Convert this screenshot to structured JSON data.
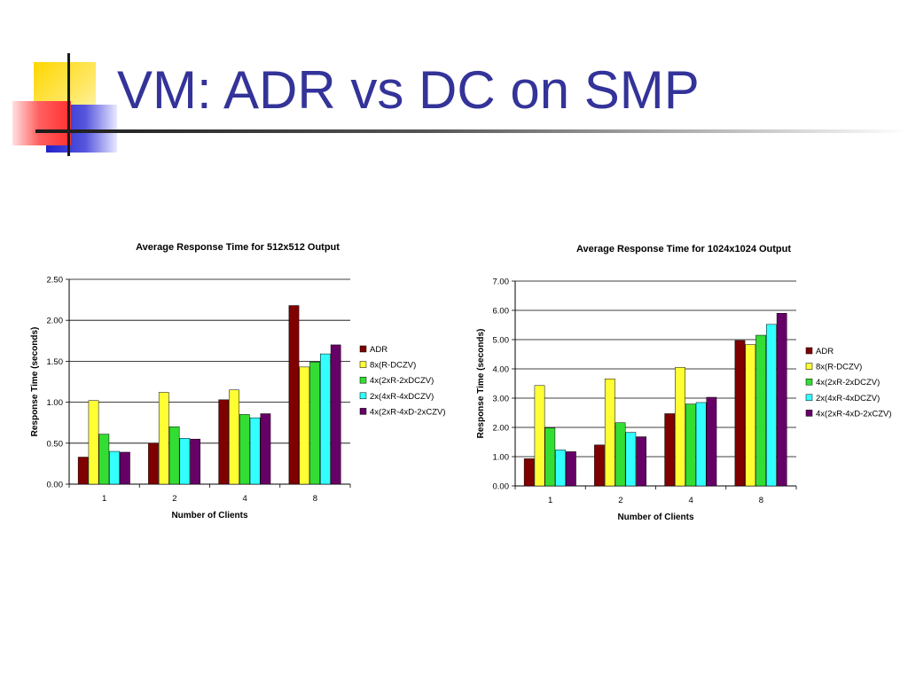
{
  "slide": {
    "title": "VM: ADR vs DC on SMP",
    "accent_colors": {
      "title": "#333399",
      "yellow": "#FFD700",
      "red": "#FF3B3B",
      "blue": "#3333CC"
    }
  },
  "chart_data": [
    {
      "type": "bar",
      "title": "Average Response Time for 512x512 Output",
      "xlabel": "Number of Clients",
      "ylabel": "Response Time (seconds)",
      "categories": [
        "1",
        "2",
        "4",
        "8"
      ],
      "ylim": [
        0,
        2.5
      ],
      "yticks": [
        "0.00",
        "0.50",
        "1.00",
        "1.50",
        "2.00",
        "2.50"
      ],
      "grid": true,
      "legend_position": "right",
      "series": [
        {
          "name": "ADR",
          "color": "#800000",
          "values": [
            0.33,
            0.5,
            1.03,
            2.18
          ]
        },
        {
          "name": "8x(R-DCZV)",
          "color": "#FFFF33",
          "values": [
            1.02,
            1.12,
            1.15,
            1.43
          ]
        },
        {
          "name": "4x(2xR-2xDCZV)",
          "color": "#33DD33",
          "values": [
            0.61,
            0.7,
            0.85,
            1.49
          ]
        },
        {
          "name": "2x(4xR-4xDCZV)",
          "color": "#33FFFF",
          "values": [
            0.4,
            0.56,
            0.81,
            1.59
          ]
        },
        {
          "name": "4x(2xR-4xD-2xCZV)",
          "color": "#660066",
          "values": [
            0.39,
            0.55,
            0.86,
            1.7
          ]
        }
      ]
    },
    {
      "type": "bar",
      "title": "Average Response Time for 1024x1024 Output",
      "xlabel": "Number of Clients",
      "ylabel": "Response Time (seconds)",
      "categories": [
        "1",
        "2",
        "4",
        "8"
      ],
      "ylim": [
        0,
        7
      ],
      "yticks": [
        "0.00",
        "1.00",
        "2.00",
        "3.00",
        "4.00",
        "5.00",
        "6.00",
        "7.00"
      ],
      "grid": true,
      "legend_position": "right",
      "series": [
        {
          "name": "ADR",
          "color": "#800000",
          "values": [
            0.93,
            1.4,
            2.47,
            4.97
          ]
        },
        {
          "name": "8x(R-DCZV)",
          "color": "#FFFF33",
          "values": [
            3.43,
            3.66,
            4.05,
            4.83
          ]
        },
        {
          "name": "4x(2xR-2xDCZV)",
          "color": "#33DD33",
          "values": [
            1.98,
            2.16,
            2.8,
            5.15
          ]
        },
        {
          "name": "2x(4xR-4xDCZV)",
          "color": "#33FFFF",
          "values": [
            1.23,
            1.83,
            2.85,
            5.52
          ]
        },
        {
          "name": "4x(2xR-4xD-2xCZV)",
          "color": "#660066",
          "values": [
            1.17,
            1.68,
            3.03,
            5.9
          ]
        }
      ]
    }
  ]
}
